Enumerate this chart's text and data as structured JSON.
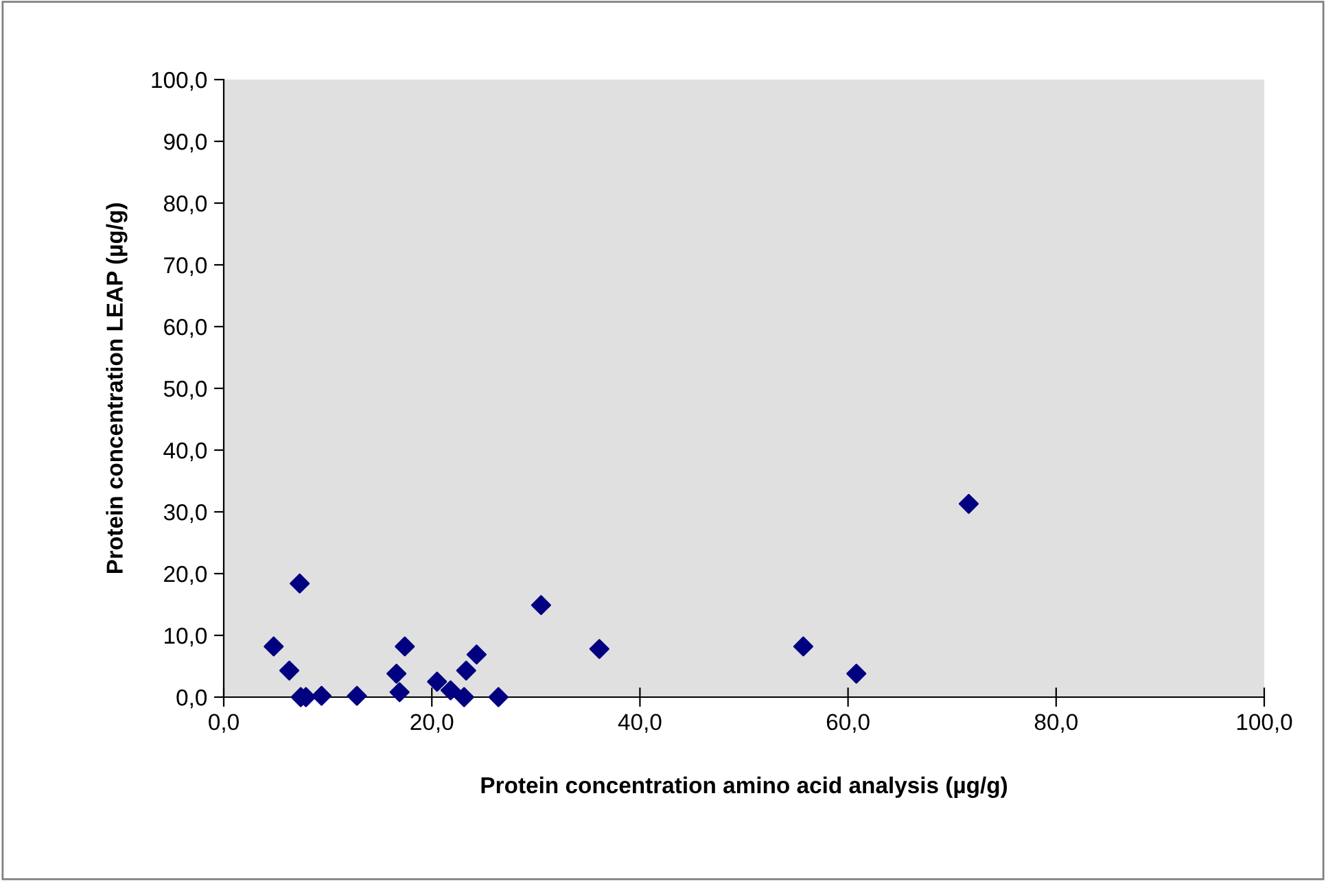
{
  "chart_data": {
    "type": "scatter",
    "xlabel": "Protein concentration amino acid analysis (µg/g)",
    "ylabel": "Protein concentration LEAP (µg/g)",
    "x": [
      4.8,
      6.3,
      7.3,
      7.4,
      7.9,
      9.4,
      12.8,
      16.6,
      16.9,
      17.4,
      20.5,
      21.8,
      23.3,
      23.1,
      24.3,
      26.4,
      30.5,
      36.1,
      55.7,
      60.8,
      71.6
    ],
    "series": [
      {
        "color": "#000080",
        "values": [
          8.2,
          4.3,
          18.4,
          0,
          0,
          0.2,
          0.2,
          3.8,
          0.8,
          8.2,
          2.5,
          1.1,
          4.3,
          0,
          6.9,
          0,
          14.9,
          7.8,
          8.2,
          3.8,
          31.3
        ]
      }
    ],
    "marker": "diamond",
    "grid": false,
    "legend": false,
    "xlim": [
      0,
      100
    ],
    "ylim": [
      0,
      100
    ],
    "xticks": [
      {
        "value": 0,
        "label": "0,0"
      },
      {
        "value": 20,
        "label": "20,0"
      },
      {
        "value": 40,
        "label": "40,0"
      },
      {
        "value": 60,
        "label": "60,0"
      },
      {
        "value": 80,
        "label": "80,0"
      },
      {
        "value": 100,
        "label": "100,0"
      }
    ],
    "yticks": [
      {
        "value": 0,
        "label": "0,0"
      },
      {
        "value": 10,
        "label": "10,0"
      },
      {
        "value": 20,
        "label": "20,0"
      },
      {
        "value": 30,
        "label": "30,0"
      },
      {
        "value": 40,
        "label": "40,0"
      },
      {
        "value": 50,
        "label": "50,0"
      },
      {
        "value": 60,
        "label": "60,0"
      },
      {
        "value": 70,
        "label": "70,0"
      },
      {
        "value": 80,
        "label": "80,0"
      },
      {
        "value": 90,
        "label": "90,0"
      },
      {
        "value": 100,
        "label": "100,0"
      }
    ]
  }
}
